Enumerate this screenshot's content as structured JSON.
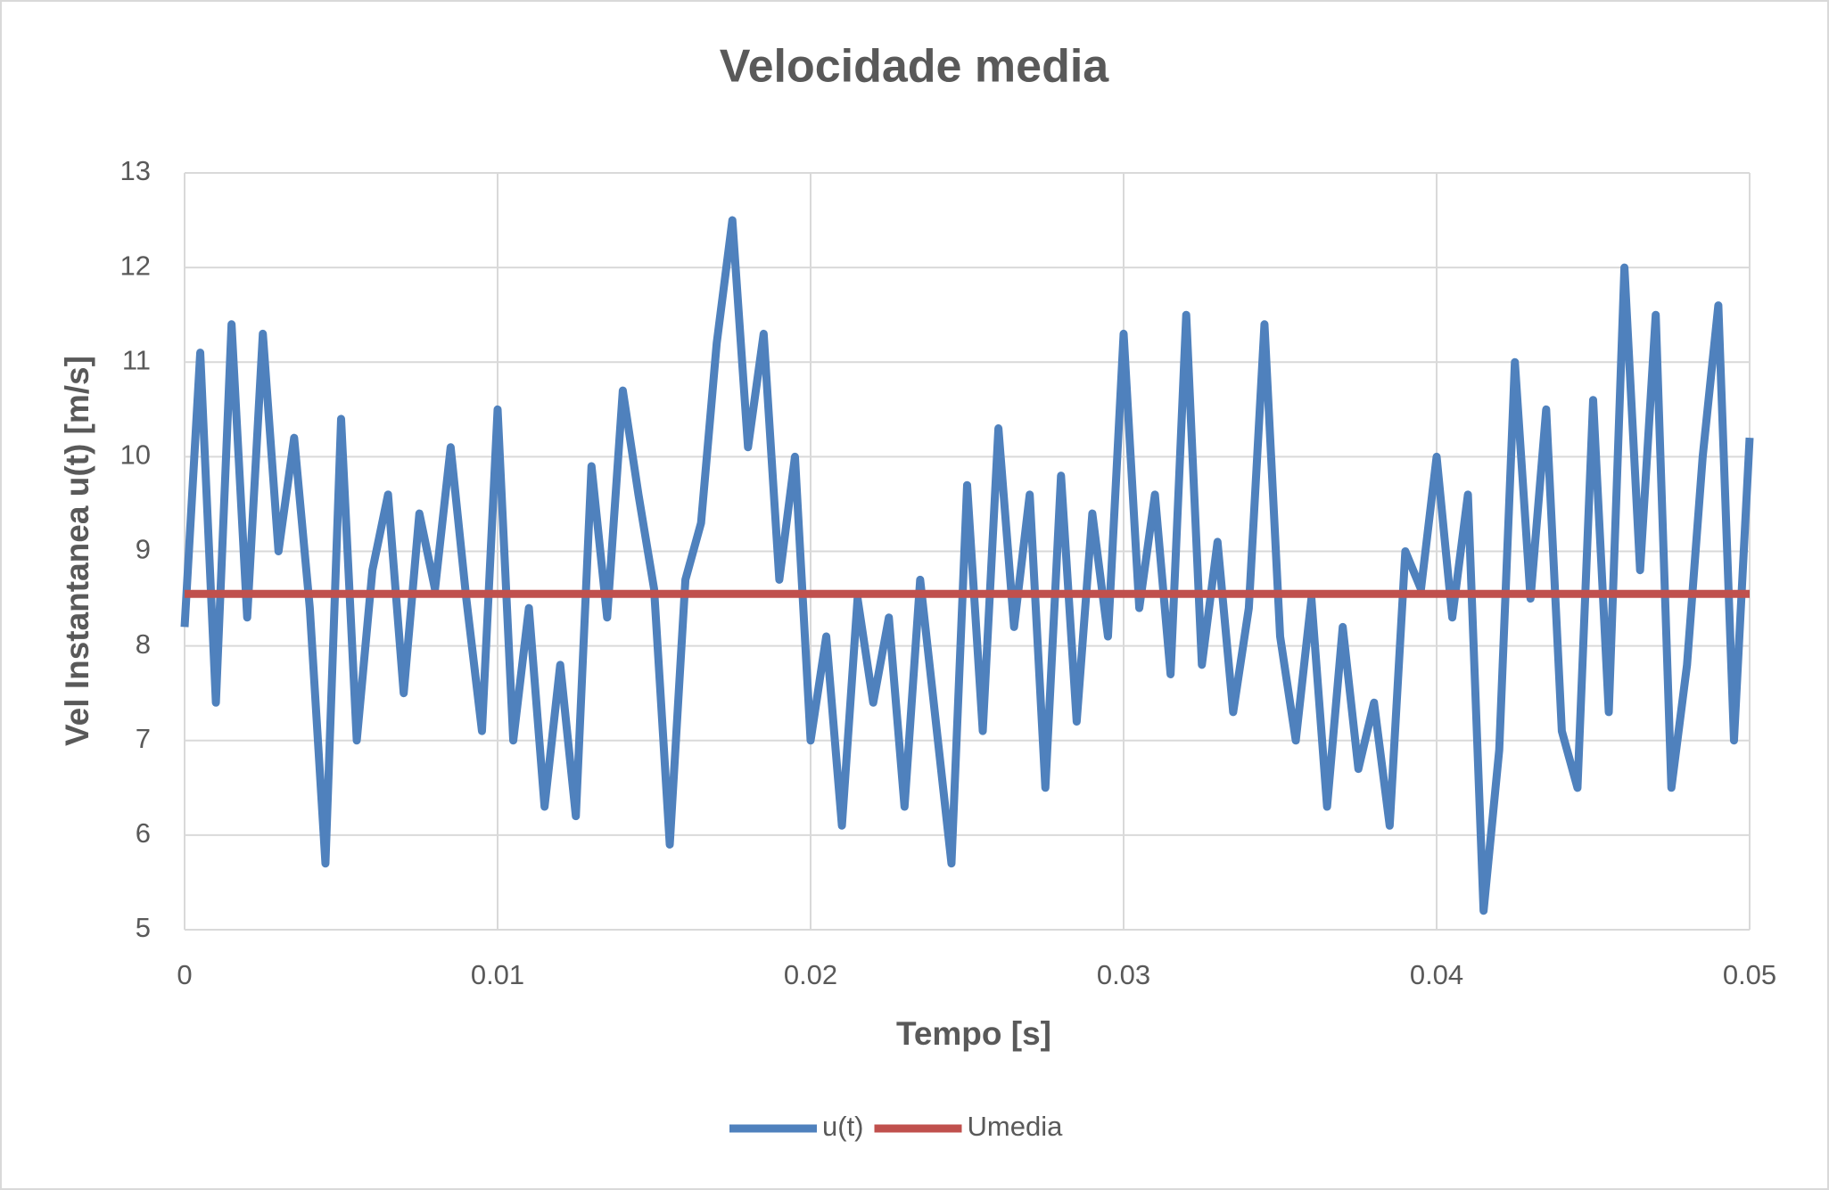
{
  "chart_data": {
    "type": "line",
    "title": "Velocidade media",
    "x_label": "Tempo [s]",
    "y_label": "Vel Instantanea u(t) [m/s]",
    "xlim": [
      0,
      0.05
    ],
    "xticks": [
      0,
      0.01,
      0.02,
      0.03,
      0.04,
      0.05
    ],
    "ylim": [
      5,
      13
    ],
    "yticks": [
      5,
      6,
      7,
      8,
      9,
      10,
      11,
      12,
      13
    ],
    "grid": true,
    "legend": "bottom",
    "series": [
      {
        "name": "u(t)",
        "color": "#4f81bd",
        "x": [
          0,
          0.0005,
          0.001,
          0.0015,
          0.002,
          0.0025,
          0.003,
          0.0035,
          0.004,
          0.0045,
          0.005,
          0.0055,
          0.006,
          0.0065,
          0.007,
          0.0075,
          0.008,
          0.0085,
          0.009,
          0.0095,
          0.01,
          0.0105,
          0.011,
          0.0115,
          0.012,
          0.0125,
          0.013,
          0.0135,
          0.014,
          0.0145,
          0.015,
          0.0155,
          0.016,
          0.0165,
          0.017,
          0.0175,
          0.018,
          0.0185,
          0.019,
          0.0195,
          0.02,
          0.0205,
          0.021,
          0.0215,
          0.022,
          0.0225,
          0.023,
          0.0235,
          0.024,
          0.0245,
          0.025,
          0.0255,
          0.026,
          0.0265,
          0.027,
          0.0275,
          0.028,
          0.0285,
          0.029,
          0.0295,
          0.03,
          0.0305,
          0.031,
          0.0315,
          0.032,
          0.0325,
          0.033,
          0.0335,
          0.034,
          0.0345,
          0.035,
          0.0355,
          0.036,
          0.0365,
          0.037,
          0.0375,
          0.038,
          0.0385,
          0.039,
          0.0395,
          0.04,
          0.0405,
          0.041,
          0.0415,
          0.042,
          0.0425,
          0.043,
          0.0435,
          0.044,
          0.0445,
          0.045,
          0.0455,
          0.046,
          0.0465,
          0.047,
          0.0475,
          0.048,
          0.0485,
          0.049,
          0.0495,
          0.05
        ],
        "values": [
          8.2,
          11.1,
          7.4,
          11.4,
          8.3,
          11.3,
          9.0,
          10.2,
          8.4,
          5.7,
          10.4,
          7.0,
          8.8,
          9.6,
          7.5,
          9.4,
          8.6,
          10.1,
          8.5,
          7.1,
          10.5,
          7.0,
          8.4,
          6.3,
          7.8,
          6.2,
          9.9,
          8.3,
          10.7,
          9.6,
          8.6,
          5.9,
          8.7,
          9.3,
          11.2,
          12.5,
          10.1,
          11.3,
          8.7,
          10.0,
          7.0,
          8.1,
          6.1,
          8.5,
          7.4,
          8.3,
          6.3,
          8.7,
          7.2,
          5.7,
          9.7,
          7.1,
          10.3,
          8.2,
          9.6,
          6.5,
          9.8,
          7.2,
          9.4,
          8.1,
          11.3,
          8.4,
          9.6,
          7.7,
          11.5,
          7.8,
          9.1,
          7.3,
          8.4,
          11.4,
          8.1,
          7.0,
          8.5,
          6.3,
          8.2,
          6.7,
          7.4,
          6.1,
          9.0,
          8.6,
          10.0,
          8.3,
          9.6,
          5.2,
          6.9,
          11.0,
          8.5,
          10.5,
          7.1,
          6.5,
          10.6,
          7.3,
          12.0,
          8.8,
          11.5,
          6.5,
          7.8,
          10.0,
          11.6,
          7.0,
          10.2
        ]
      },
      {
        "name": "Umedia",
        "color": "#c0504d",
        "x": [
          0,
          0.05
        ],
        "values": [
          8.55,
          8.55
        ]
      }
    ]
  }
}
